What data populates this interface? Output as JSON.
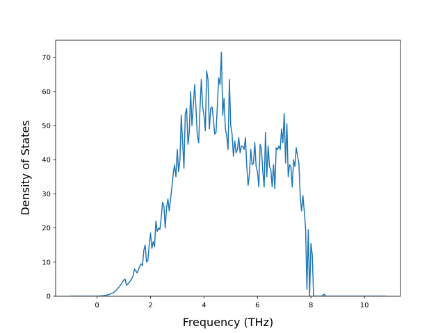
{
  "chart_data": {
    "type": "line",
    "title": "",
    "xlabel": "Frequency (THz)",
    "ylabel": "Density of States",
    "xlim": [
      -1.55,
      11.35
    ],
    "ylim": [
      0,
      75
    ],
    "xticks": [
      0,
      2,
      4,
      6,
      8,
      10
    ],
    "yticks": [
      0,
      10,
      20,
      30,
      40,
      50,
      60,
      70
    ],
    "grid": false,
    "legend": "none",
    "series": [
      {
        "color": "#1f77b4",
        "points": [
          [
            -1.0,
            0
          ],
          [
            -0.5,
            0
          ],
          [
            0.0,
            0
          ],
          [
            0.2,
            0.1
          ],
          [
            0.4,
            0.4
          ],
          [
            0.5,
            0.7
          ],
          [
            0.6,
            1.0
          ],
          [
            0.7,
            1.6
          ],
          [
            0.8,
            2.5
          ],
          [
            0.9,
            3.5
          ],
          [
            1.0,
            4.8
          ],
          [
            1.05,
            5.0
          ],
          [
            1.1,
            3.2
          ],
          [
            1.2,
            4.0
          ],
          [
            1.3,
            5.2
          ],
          [
            1.35,
            6.0
          ],
          [
            1.4,
            8.0
          ],
          [
            1.5,
            6.8
          ],
          [
            1.6,
            8.8
          ],
          [
            1.65,
            9.5
          ],
          [
            1.7,
            9.0
          ],
          [
            1.75,
            13.5
          ],
          [
            1.8,
            15.0
          ],
          [
            1.85,
            10.0
          ],
          [
            1.9,
            10.5
          ],
          [
            1.95,
            15.0
          ],
          [
            2.0,
            18.5
          ],
          [
            2.05,
            14.0
          ],
          [
            2.1,
            16.0
          ],
          [
            2.15,
            14.5
          ],
          [
            2.2,
            22.0
          ],
          [
            2.25,
            19.0
          ],
          [
            2.3,
            20.0
          ],
          [
            2.35,
            19.5
          ],
          [
            2.4,
            23.0
          ],
          [
            2.45,
            27.5
          ],
          [
            2.5,
            26.5
          ],
          [
            2.55,
            20.0
          ],
          [
            2.6,
            26.0
          ],
          [
            2.65,
            28.5
          ],
          [
            2.7,
            25.0
          ],
          [
            2.75,
            28.5
          ],
          [
            2.8,
            32.0
          ],
          [
            2.85,
            36.0
          ],
          [
            2.9,
            38.5
          ],
          [
            2.95,
            35.0
          ],
          [
            3.0,
            43.0
          ],
          [
            3.05,
            36.5
          ],
          [
            3.1,
            40.0
          ],
          [
            3.15,
            53.0
          ],
          [
            3.2,
            45.0
          ],
          [
            3.25,
            37.5
          ],
          [
            3.3,
            53.5
          ],
          [
            3.35,
            55.0
          ],
          [
            3.4,
            44.5
          ],
          [
            3.45,
            48.0
          ],
          [
            3.5,
            60.0
          ],
          [
            3.55,
            50.0
          ],
          [
            3.6,
            56.0
          ],
          [
            3.65,
            62.0
          ],
          [
            3.7,
            55.0
          ],
          [
            3.75,
            47.0
          ],
          [
            3.8,
            45.0
          ],
          [
            3.85,
            55.0
          ],
          [
            3.9,
            63.5
          ],
          [
            3.95,
            55.5
          ],
          [
            4.0,
            53.0
          ],
          [
            4.05,
            48.5
          ],
          [
            4.1,
            66.0
          ],
          [
            4.15,
            63.5
          ],
          [
            4.2,
            49.0
          ],
          [
            4.25,
            55.0
          ],
          [
            4.3,
            55.5
          ],
          [
            4.35,
            52.0
          ],
          [
            4.4,
            47.5
          ],
          [
            4.45,
            48.0
          ],
          [
            4.5,
            56.0
          ],
          [
            4.55,
            64.0
          ],
          [
            4.6,
            62.0
          ],
          [
            4.65,
            71.5
          ],
          [
            4.7,
            53.0
          ],
          [
            4.75,
            58.0
          ],
          [
            4.8,
            49.0
          ],
          [
            4.85,
            47.0
          ],
          [
            4.9,
            43.0
          ],
          [
            4.95,
            63.5
          ],
          [
            5.0,
            50.0
          ],
          [
            5.05,
            47.5
          ],
          [
            5.1,
            41.0
          ],
          [
            5.15,
            45.5
          ],
          [
            5.2,
            42.0
          ],
          [
            5.25,
            43.0
          ],
          [
            5.3,
            46.5
          ],
          [
            5.35,
            42.0
          ],
          [
            5.4,
            44.0
          ],
          [
            5.45,
            44.0
          ],
          [
            5.5,
            43.0
          ],
          [
            5.55,
            46.5
          ],
          [
            5.6,
            38.0
          ],
          [
            5.65,
            32.5
          ],
          [
            5.7,
            36.0
          ],
          [
            5.75,
            43.0
          ],
          [
            5.8,
            38.5
          ],
          [
            5.85,
            39.0
          ],
          [
            5.9,
            45.0
          ],
          [
            5.95,
            38.0
          ],
          [
            6.0,
            36.5
          ],
          [
            6.05,
            32.0
          ],
          [
            6.1,
            44.5
          ],
          [
            6.15,
            43.0
          ],
          [
            6.2,
            36.5
          ],
          [
            6.25,
            32.0
          ],
          [
            6.3,
            48.0
          ],
          [
            6.35,
            35.0
          ],
          [
            6.4,
            44.0
          ],
          [
            6.45,
            38.0
          ],
          [
            6.5,
            37.0
          ],
          [
            6.55,
            32.0
          ],
          [
            6.6,
            38.5
          ],
          [
            6.65,
            31.5
          ],
          [
            6.7,
            43.5
          ],
          [
            6.75,
            43.0
          ],
          [
            6.8,
            44.0
          ],
          [
            6.85,
            43.0
          ],
          [
            6.9,
            49.0
          ],
          [
            6.95,
            45.0
          ],
          [
            7.0,
            53.5
          ],
          [
            7.05,
            39.0
          ],
          [
            7.1,
            50.5
          ],
          [
            7.15,
            35.0
          ],
          [
            7.2,
            38.5
          ],
          [
            7.25,
            38.0
          ],
          [
            7.3,
            32.0
          ],
          [
            7.35,
            40.0
          ],
          [
            7.4,
            38.0
          ],
          [
            7.45,
            43.5
          ],
          [
            7.5,
            41.0
          ],
          [
            7.55,
            39.0
          ],
          [
            7.6,
            29.0
          ],
          [
            7.65,
            25.0
          ],
          [
            7.7,
            29.5
          ],
          [
            7.75,
            25.0
          ],
          [
            7.8,
            20.0
          ],
          [
            7.85,
            2.0
          ],
          [
            7.9,
            19.5
          ],
          [
            7.95,
            0.0
          ],
          [
            8.0,
            15.5
          ],
          [
            8.05,
            12.0
          ],
          [
            8.1,
            0.0
          ],
          [
            8.2,
            0
          ],
          [
            8.4,
            0
          ],
          [
            8.5,
            0.6
          ],
          [
            8.55,
            0
          ],
          [
            9.0,
            0
          ],
          [
            10.0,
            0
          ],
          [
            10.8,
            0
          ]
        ]
      }
    ]
  }
}
